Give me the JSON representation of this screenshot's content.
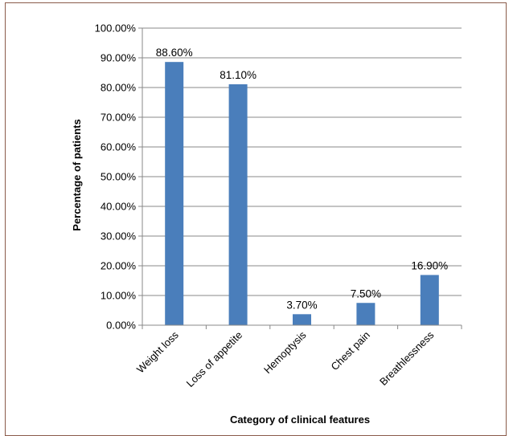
{
  "chart_data": {
    "type": "bar",
    "categories": [
      "Weight loss",
      "Loss of appetite",
      "Hemoptysis",
      "Chest pain",
      "Breathlessness"
    ],
    "values": [
      88.6,
      81.1,
      3.7,
      7.5,
      16.9
    ],
    "data_labels": [
      "88.60%",
      "81.10%",
      "3.70%",
      "7.50%",
      "16.90%"
    ],
    "title": "",
    "xlabel": "Category of clinical features",
    "ylabel": "Percentage of patients",
    "ylim": [
      0,
      100
    ],
    "y_ticks": [
      0,
      10,
      20,
      30,
      40,
      50,
      60,
      70,
      80,
      90,
      100
    ],
    "y_tick_labels": [
      "0.00%",
      "10.00%",
      "20.00%",
      "30.00%",
      "40.00%",
      "50.00%",
      "60.00%",
      "70.00%",
      "80.00%",
      "90.00%",
      "100.00%"
    ],
    "grid": true,
    "legend": "none",
    "bar_color": "#4a7ebb"
  }
}
